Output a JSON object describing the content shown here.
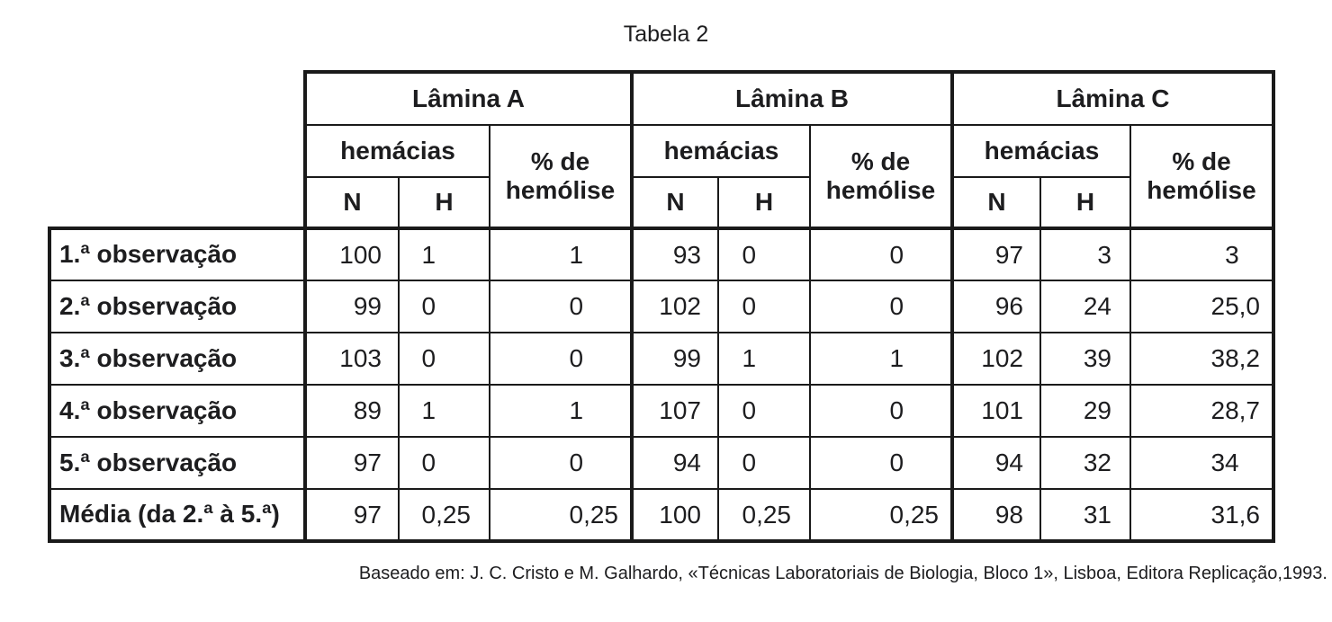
{
  "title": "Tabela 2",
  "footer": "Baseado em: J. C. Cristo e M. Galhardo, «Técnicas Laboratoriais de Biologia, Bloco 1», Lisboa, Editora Replicação,1993.",
  "table": {
    "groups": [
      {
        "label": "Lâmina A"
      },
      {
        "label": "Lâmina B"
      },
      {
        "label": "Lâmina C"
      }
    ],
    "subheaders": {
      "hemacias": "hemácias",
      "pct": "% de hemólise",
      "n": "N",
      "h": "H"
    },
    "rows": [
      {
        "label": "1.ª observação",
        "cells": [
          "100",
          "1",
          "1",
          "93",
          "0",
          "0",
          "97",
          "3",
          "3"
        ]
      },
      {
        "label": "2.ª observação",
        "cells": [
          "99",
          "0",
          "0",
          "102",
          "0",
          "0",
          "96",
          "24",
          "25,0"
        ]
      },
      {
        "label": "3.ª observação",
        "cells": [
          "103",
          "0",
          "0",
          "99",
          "1",
          "1",
          "102",
          "39",
          "38,2"
        ]
      },
      {
        "label": "4.ª observação",
        "cells": [
          "89",
          "1",
          "1",
          "107",
          "0",
          "0",
          "101",
          "29",
          "28,7"
        ]
      },
      {
        "label": "5.ª observação",
        "cells": [
          "97",
          "0",
          "0",
          "94",
          "0",
          "0",
          "94",
          "32",
          "34"
        ]
      },
      {
        "label": "Média (da 2.ª à 5.ª)",
        "cells": [
          "97",
          "0,25",
          "0,25",
          "100",
          "0,25",
          "0,25",
          "98",
          "31",
          "31,6"
        ]
      }
    ]
  }
}
